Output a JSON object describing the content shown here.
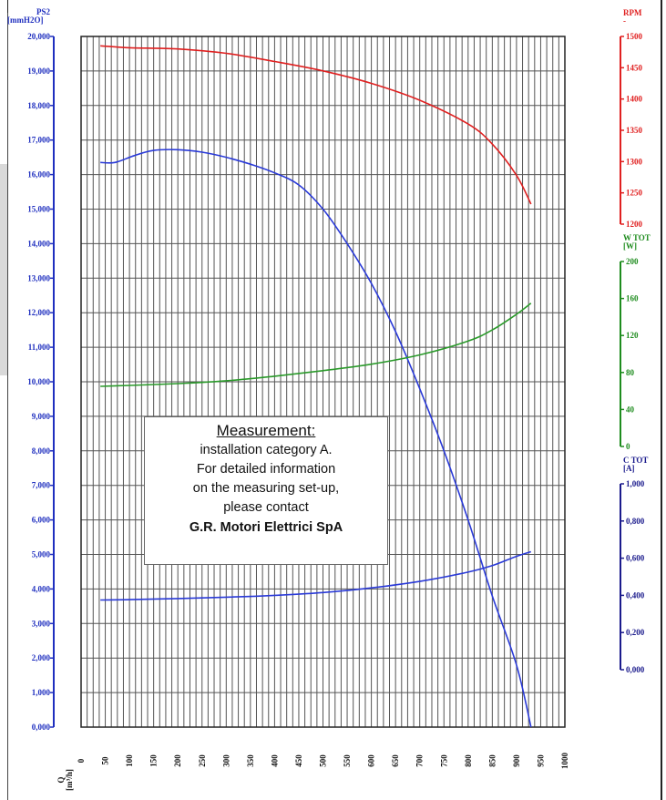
{
  "chart_data": {
    "type": "line",
    "x_axis": {
      "title_lines": [
        "Q",
        "[m³/h]"
      ],
      "min": 0,
      "max": 1000,
      "ticks": [
        0,
        50,
        100,
        150,
        200,
        250,
        300,
        350,
        400,
        450,
        500,
        550,
        600,
        650,
        700,
        750,
        800,
        850,
        900,
        950,
        1000
      ]
    },
    "y_axes": [
      {
        "id": "ps2",
        "title_lines": [
          "PS2",
          "[mmH2O]"
        ],
        "color": "#1f2fbf",
        "min": 0,
        "max": 20,
        "tick_labels": [
          "0,000",
          "1,000",
          "2,000",
          "3,000",
          "4,000",
          "5,000",
          "6,000",
          "7,000",
          "8,000",
          "9,000",
          "10,000",
          "11,000",
          "12,000",
          "13,000",
          "14,000",
          "15,000",
          "16,000",
          "17,000",
          "18,000",
          "19,000",
          "20,000"
        ],
        "tick_values": [
          0,
          1,
          2,
          3,
          4,
          5,
          6,
          7,
          8,
          9,
          10,
          11,
          12,
          13,
          14,
          15,
          16,
          17,
          18,
          19,
          20
        ]
      },
      {
        "id": "rpm",
        "title_lines": [
          "RPM",
          "-"
        ],
        "color": "#e02020",
        "min": 1200,
        "max": 1500,
        "tick_values": [
          1200,
          1250,
          1300,
          1350,
          1400,
          1450,
          1500
        ],
        "tick_labels": [
          "1200",
          "1250",
          "1300",
          "1350",
          "1400",
          "1450",
          "1500"
        ]
      },
      {
        "id": "wtot",
        "title_lines": [
          "W TOT",
          "[W]"
        ],
        "color": "#1e8c1e",
        "min": 0,
        "max": 200,
        "tick_values": [
          0,
          40,
          80,
          120,
          160,
          200
        ],
        "tick_labels": [
          "0",
          "40",
          "80",
          "120",
          "160",
          "200"
        ]
      },
      {
        "id": "ctot",
        "title_lines": [
          "C TOT",
          "[A]"
        ],
        "color": "#1a1a8c",
        "min": 0,
        "max": 1,
        "tick_values": [
          0,
          0.2,
          0.4,
          0.6,
          0.8,
          1
        ],
        "tick_labels": [
          "0,000",
          "0,200",
          "0,400",
          "0,600",
          "0,800",
          "1,000"
        ]
      }
    ],
    "series": [
      {
        "axis": "rpm",
        "color": "#e02020",
        "x": [
          40,
          100,
          200,
          300,
          400,
          500,
          600,
          700,
          800,
          850,
          900,
          930
        ],
        "y": [
          1485,
          1482,
          1480,
          1473,
          1460,
          1445,
          1425,
          1398,
          1360,
          1328,
          1278,
          1232
        ]
      },
      {
        "axis": "ps2",
        "color": "#2a3ad8",
        "x": [
          40,
          70,
          110,
          150,
          200,
          250,
          300,
          350,
          400,
          450,
          500,
          550,
          600,
          650,
          700,
          750,
          800,
          850,
          900,
          930
        ],
        "y": [
          16.35,
          16.35,
          16.55,
          16.7,
          16.72,
          16.65,
          16.5,
          16.3,
          16.05,
          15.7,
          15.0,
          14.0,
          12.85,
          11.45,
          9.8,
          8.0,
          6.0,
          3.8,
          1.8,
          0.0
        ]
      },
      {
        "axis": "wtot",
        "color": "#2a9a2a",
        "x": [
          40,
          100,
          200,
          300,
          400,
          500,
          600,
          700,
          800,
          850,
          900,
          930
        ],
        "y": [
          65,
          66,
          68,
          71,
          76,
          82,
          89,
          99,
          114,
          126,
          143,
          155
        ]
      },
      {
        "axis": "ctot",
        "color": "#2a3ad8",
        "x": [
          40,
          100,
          200,
          300,
          400,
          500,
          600,
          700,
          800,
          850,
          900,
          930
        ],
        "y": [
          0.375,
          0.377,
          0.383,
          0.39,
          0.4,
          0.415,
          0.44,
          0.475,
          0.525,
          0.56,
          0.61,
          0.635
        ]
      }
    ],
    "grid": true,
    "annotation": {
      "title": "Measurement:",
      "lines": [
        "installation category A.",
        "For detailed information",
        "on the measuring set-up,",
        "please contact"
      ],
      "company": "G.R. Motori Elettrici SpA"
    }
  }
}
